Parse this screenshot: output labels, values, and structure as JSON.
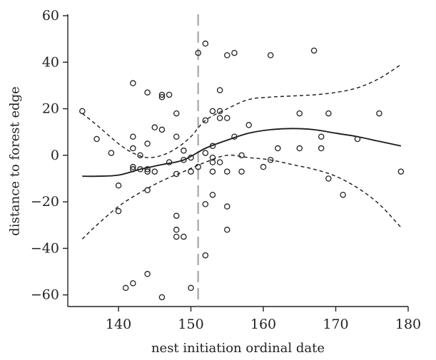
{
  "chart_data": {
    "type": "scatter",
    "title": "",
    "xlabel": "nest initiation ordinal date",
    "ylabel": "distance to forest edge",
    "xlim": [
      133,
      180
    ],
    "ylim": [
      -65,
      60
    ],
    "xticks": [
      140,
      150,
      160,
      170,
      180
    ],
    "yticks": [
      -60,
      -40,
      -20,
      0,
      20,
      40,
      60
    ],
    "grid": false,
    "legend": "none",
    "points": [
      {
        "x": 135,
        "y": 19
      },
      {
        "x": 137,
        "y": 7
      },
      {
        "x": 139,
        "y": 1
      },
      {
        "x": 140,
        "y": -13
      },
      {
        "x": 140,
        "y": -24
      },
      {
        "x": 141,
        "y": -57
      },
      {
        "x": 142,
        "y": -55
      },
      {
        "x": 142,
        "y": 31
      },
      {
        "x": 142,
        "y": 8
      },
      {
        "x": 142,
        "y": 3
      },
      {
        "x": 142,
        "y": -6
      },
      {
        "x": 142,
        "y": -5
      },
      {
        "x": 143,
        "y": -6
      },
      {
        "x": 143,
        "y": 0
      },
      {
        "x": 144,
        "y": 27
      },
      {
        "x": 144,
        "y": 5
      },
      {
        "x": 144,
        "y": -7
      },
      {
        "x": 144,
        "y": -6
      },
      {
        "x": 144,
        "y": -15
      },
      {
        "x": 144,
        "y": -51
      },
      {
        "x": 145,
        "y": 12
      },
      {
        "x": 145,
        "y": -7
      },
      {
        "x": 146,
        "y": 26
      },
      {
        "x": 146,
        "y": 25
      },
      {
        "x": 146,
        "y": 11
      },
      {
        "x": 146,
        "y": -61
      },
      {
        "x": 147,
        "y": 26
      },
      {
        "x": 147,
        "y": -3
      },
      {
        "x": 148,
        "y": 18
      },
      {
        "x": 148,
        "y": 8
      },
      {
        "x": 148,
        "y": -8
      },
      {
        "x": 148,
        "y": -26
      },
      {
        "x": 148,
        "y": -32
      },
      {
        "x": 148,
        "y": -35
      },
      {
        "x": 149,
        "y": 2
      },
      {
        "x": 149,
        "y": -2
      },
      {
        "x": 149,
        "y": -35
      },
      {
        "x": 150,
        "y": -1
      },
      {
        "x": 150,
        "y": -7
      },
      {
        "x": 150,
        "y": -57
      },
      {
        "x": 151,
        "y": 44
      },
      {
        "x": 151,
        "y": -5
      },
      {
        "x": 152,
        "y": 48
      },
      {
        "x": 152,
        "y": 15
      },
      {
        "x": 152,
        "y": 1
      },
      {
        "x": 152,
        "y": -21
      },
      {
        "x": 152,
        "y": -43
      },
      {
        "x": 153,
        "y": 19
      },
      {
        "x": 153,
        "y": 4
      },
      {
        "x": 153,
        "y": -1
      },
      {
        "x": 153,
        "y": -3
      },
      {
        "x": 153,
        "y": -7
      },
      {
        "x": 153,
        "y": -17
      },
      {
        "x": 154,
        "y": 28
      },
      {
        "x": 154,
        "y": 19
      },
      {
        "x": 154,
        "y": 16
      },
      {
        "x": 154,
        "y": -3
      },
      {
        "x": 155,
        "y": 43
      },
      {
        "x": 155,
        "y": 16
      },
      {
        "x": 155,
        "y": -7
      },
      {
        "x": 155,
        "y": -22
      },
      {
        "x": 155,
        "y": -32
      },
      {
        "x": 156,
        "y": 44
      },
      {
        "x": 156,
        "y": 8
      },
      {
        "x": 157,
        "y": 0
      },
      {
        "x": 157,
        "y": -7
      },
      {
        "x": 158,
        "y": 13
      },
      {
        "x": 160,
        "y": -5
      },
      {
        "x": 161,
        "y": 43
      },
      {
        "x": 161,
        "y": -2
      },
      {
        "x": 162,
        "y": 3
      },
      {
        "x": 165,
        "y": 18
      },
      {
        "x": 165,
        "y": 3
      },
      {
        "x": 167,
        "y": 45
      },
      {
        "x": 168,
        "y": 8
      },
      {
        "x": 168,
        "y": 3
      },
      {
        "x": 169,
        "y": 18
      },
      {
        "x": 169,
        "y": -10
      },
      {
        "x": 171,
        "y": -17
      },
      {
        "x": 173,
        "y": 7
      },
      {
        "x": 176,
        "y": 18
      },
      {
        "x": 179,
        "y": -7
      }
    ],
    "fit": {
      "x": [
        135,
        137,
        140,
        143,
        146,
        149,
        152,
        155,
        158,
        161,
        164,
        167,
        170,
        173,
        176,
        179
      ],
      "y": [
        -9,
        -9,
        -8.5,
        -6,
        -4,
        -2,
        3,
        6.5,
        9.5,
        11,
        11.5,
        11,
        9.5,
        8,
        6,
        4
      ]
    },
    "ci_upper": {
      "x": [
        135,
        137,
        140,
        142,
        144,
        146,
        148,
        150,
        152,
        155,
        158,
        161,
        164,
        167,
        170,
        173,
        176,
        179
      ],
      "y": [
        18,
        13,
        5,
        1,
        -1,
        0,
        3,
        8,
        15,
        20,
        24,
        25,
        25.5,
        26,
        27,
        29,
        33,
        39
      ]
    },
    "ci_lower": {
      "x": [
        135,
        137,
        140,
        143,
        146,
        149,
        152,
        155,
        158,
        161,
        164,
        167,
        170,
        173,
        176,
        179
      ],
      "y": [
        -36,
        -30,
        -22,
        -16,
        -11,
        -7,
        -3,
        0,
        -1,
        -2,
        -4,
        -6,
        -9,
        -14,
        -21,
        -31
      ]
    },
    "reference_line_x": 151,
    "colors": {
      "points": "#222222",
      "fit": "#1a1a1a",
      "reference": "#b0b0b0"
    }
  }
}
